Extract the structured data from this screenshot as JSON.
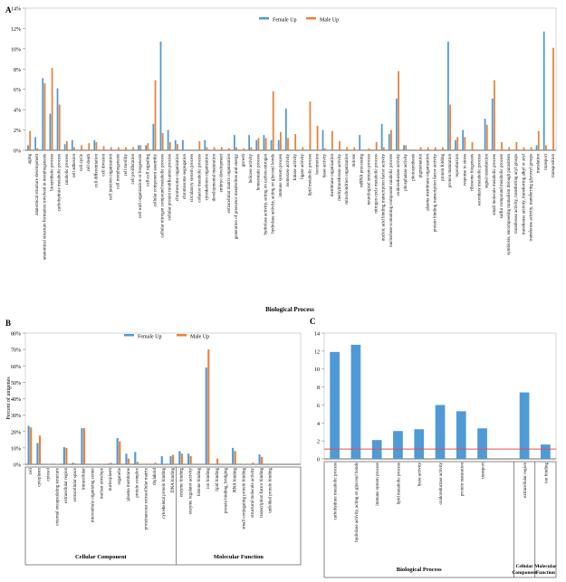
{
  "colors": {
    "female": "#4f9ad6",
    "male": "#e8823a",
    "threshold": "#e05050"
  },
  "chart_data": [
    {
      "panel": "A",
      "type": "bar",
      "xlabel": "Biological Process",
      "ylabel": "",
      "ylim": [
        0,
        14
      ],
      "yticks": [
        0,
        2,
        4,
        6,
        8,
        10,
        12,
        14
      ],
      "ytick_suffix": "%",
      "legend": [
        "Female Up",
        "Male Up"
      ],
      "categories": [
        "aging",
        "anatomical structure development",
        "anatomical structure formation involved in morphogenesis",
        "biosynthetic process",
        "carbohydrate metabolic process",
        "catabolic process",
        "cell adhesion",
        "cell cycle",
        "cell death",
        "cell differentiation",
        "cell division",
        "cell junction organization",
        "cell morphogenesis",
        "cell motility",
        "cell proliferation",
        "cell wall organization or biogenesis",
        "cell-cell signaling",
        "cellular component assembly",
        "cellular nitrogen compound metabolic process",
        "cellular protein modification process",
        "chromosome organization",
        "chromosome segregation",
        "circulatory system process",
        "cofactor metabolic process",
        "cytoskeleton organization",
        "developmental maturation",
        "embryo development",
        "extracellular matrix organization",
        "generation of precursor metabolites and energy",
        "growth",
        "helicase activity",
        "homeostatic process",
        "hydrolase activity, acting on carbon-nitrogen",
        "hydrolase activity, acting on glycosyl bonds",
        "immune system process",
        "isomerase activity",
        "kinase activity",
        "ligase activity",
        "lipid metabolic process",
        "locomotion",
        "lyase activity",
        "membrane organization",
        "methyltransferase activity",
        "mitochondrion organization",
        "mitosis",
        "mRNA processing",
        "neurological system process",
        "nitrogen cycle metabolic process",
        "nucleic acid binding transcription factor activity",
        "nucleobase-containing compound catabolic process",
        "oxidoreductase activity",
        "phosphatase activity",
        "photosynthesis",
        "pigmentation",
        "plasma membrane organization",
        "protein binding transcription factor activity",
        "protein folding",
        "protein maturation",
        "reproduction",
        "response to stress",
        "ribosome biogenesis",
        "secondary metabolic process",
        "signal transduction",
        "small molecule metabolic process",
        "sulfur compound metabolic process",
        "symbiosis, encompassing mutualism through parasitism",
        "transferase activity, transferring acyl groups",
        "transferase activity, transferring alkyl or aryl",
        "transferase activity, transferring glycosyl groups",
        "translation",
        "transport",
        "transposition"
      ],
      "series": [
        {
          "name": "Female Up",
          "values": [
            0.5,
            1.3,
            7.1,
            3.6,
            6.1,
            0.6,
            1.0,
            0,
            0,
            1.0,
            0,
            0,
            0,
            0,
            0,
            0.5,
            0.5,
            2.6,
            10.7,
            2.0,
            1.0,
            1.0,
            0,
            0,
            1.0,
            0,
            0,
            0,
            1.5,
            0,
            1.5,
            1.0,
            1.5,
            1.0,
            1.0,
            4.1,
            0,
            0,
            0,
            0,
            2.0,
            0,
            0,
            0,
            0,
            1.5,
            0,
            0,
            2.6,
            1.6,
            5.1,
            0.5,
            0,
            0,
            0,
            0,
            0,
            10.7,
            1.0,
            2.0,
            0,
            0,
            3.1,
            5.1,
            0,
            0,
            0,
            0,
            0,
            0.5,
            11.7,
            0
          ]
        },
        {
          "name": "Male Up",
          "values": [
            1.9,
            0.2,
            6.6,
            8.1,
            4.5,
            0.9,
            0.3,
            0.5,
            0.7,
            0.8,
            0.4,
            0.3,
            0.3,
            0.3,
            0.3,
            0.5,
            0.7,
            6.9,
            1.7,
            0.8,
            0.6,
            0,
            0,
            0.9,
            0.3,
            0.3,
            0.3,
            0.2,
            0.3,
            0.2,
            0.3,
            1.2,
            1.2,
            5.8,
            1.8,
            1.2,
            1.6,
            0.3,
            4.8,
            2.4,
            0.2,
            1.9,
            0.9,
            0.3,
            0.3,
            0,
            0.2,
            0.8,
            0.3,
            2.0,
            7.8,
            0.5,
            0,
            0.3,
            0.3,
            0.3,
            0.3,
            4.5,
            1.3,
            1.3,
            0.8,
            0,
            2.5,
            6.9,
            0.8,
            0.3,
            0.8,
            0.3,
            0.3,
            1.9,
            0.5,
            10.1
          ]
        }
      ]
    },
    {
      "panel": "B",
      "type": "bar",
      "ylabel": "Percent of unigenes",
      "ylim": [
        0,
        80
      ],
      "yticks": [
        0,
        10,
        20,
        30,
        40,
        50,
        60,
        70,
        80
      ],
      "ytick_suffix": "%",
      "legend": [
        "Female Up",
        "Male Up"
      ],
      "groups": [
        {
          "label": "Cellular Component",
          "start": 0,
          "end": 16
        },
        {
          "label": "Molecular Function",
          "start": 17,
          "end": 30
        }
      ],
      "categories": [
        "cell",
        "cytoplasm",
        "cytosol",
        "external encapsulating structure",
        "extracellular region",
        "extracellular space",
        "intracellular",
        "microtubule organizing center",
        "nuclear envelope",
        "nucleoplasm",
        "organelle",
        "plasma membrane",
        "protein complex",
        "proteinaceous extracellular matrix",
        "thylakoid",
        "cytoskeletal protein binding",
        "DNA binding",
        "enzyme binding",
        "enzyme regulator activity",
        "histone binding",
        "ion binding",
        "lipid binding",
        "protein binding, bridging",
        "RNA binding",
        "small conjugating protein binding",
        "structural molecule activity",
        "transcription factor binding",
        "unfolded protein binding",
        "",
        "",
        ""
      ],
      "series": [
        {
          "name": "Female Up",
          "values": [
            23.5,
            13.0,
            0,
            0,
            10.5,
            1.0,
            22.0,
            0,
            0,
            0.5,
            16.0,
            6.5,
            7.5,
            0,
            0,
            5.0,
            5.0,
            8.0,
            6.5,
            0,
            59.0,
            0,
            0,
            10.0,
            0,
            0,
            6.0,
            0,
            0,
            0,
            0
          ]
        },
        {
          "name": "Male Up",
          "values": [
            22.5,
            17.5,
            0.3,
            0.3,
            10.0,
            0.5,
            22.0,
            0.3,
            0.2,
            1.0,
            14.0,
            3.5,
            1.5,
            0.5,
            1.0,
            0,
            5.8,
            6.5,
            5.0,
            0,
            70.0,
            3.5,
            0,
            8.0,
            0.3,
            1.0,
            4.5,
            0,
            0,
            0,
            0
          ]
        }
      ]
    },
    {
      "panel": "C",
      "type": "bar",
      "xlabel": "",
      "ylim": [
        0,
        14
      ],
      "yticks": [
        0,
        2,
        4,
        6,
        8,
        10,
        12,
        14
      ],
      "threshold": 1.1,
      "groups": [
        {
          "label": "Biological Process",
          "start": 0,
          "end": 8
        },
        {
          "label": "Cellular Component",
          "start": 9,
          "end": 9
        },
        {
          "label": "Molecular Function",
          "start": 10,
          "end": 10
        }
      ],
      "categories": [
        "carbohydrate metabolic process",
        "hydrolase activity, acting on glycosyl bonds",
        "immune system process",
        "lipid metabolic process",
        "lyase activity",
        "oxidoreductase activity",
        "protein maturation",
        "transport",
        "",
        "extracellular region",
        "ion binding"
      ],
      "values": [
        11.9,
        12.7,
        2.1,
        3.1,
        3.3,
        6.0,
        5.3,
        3.4,
        0,
        7.4,
        1.6
      ]
    }
  ]
}
